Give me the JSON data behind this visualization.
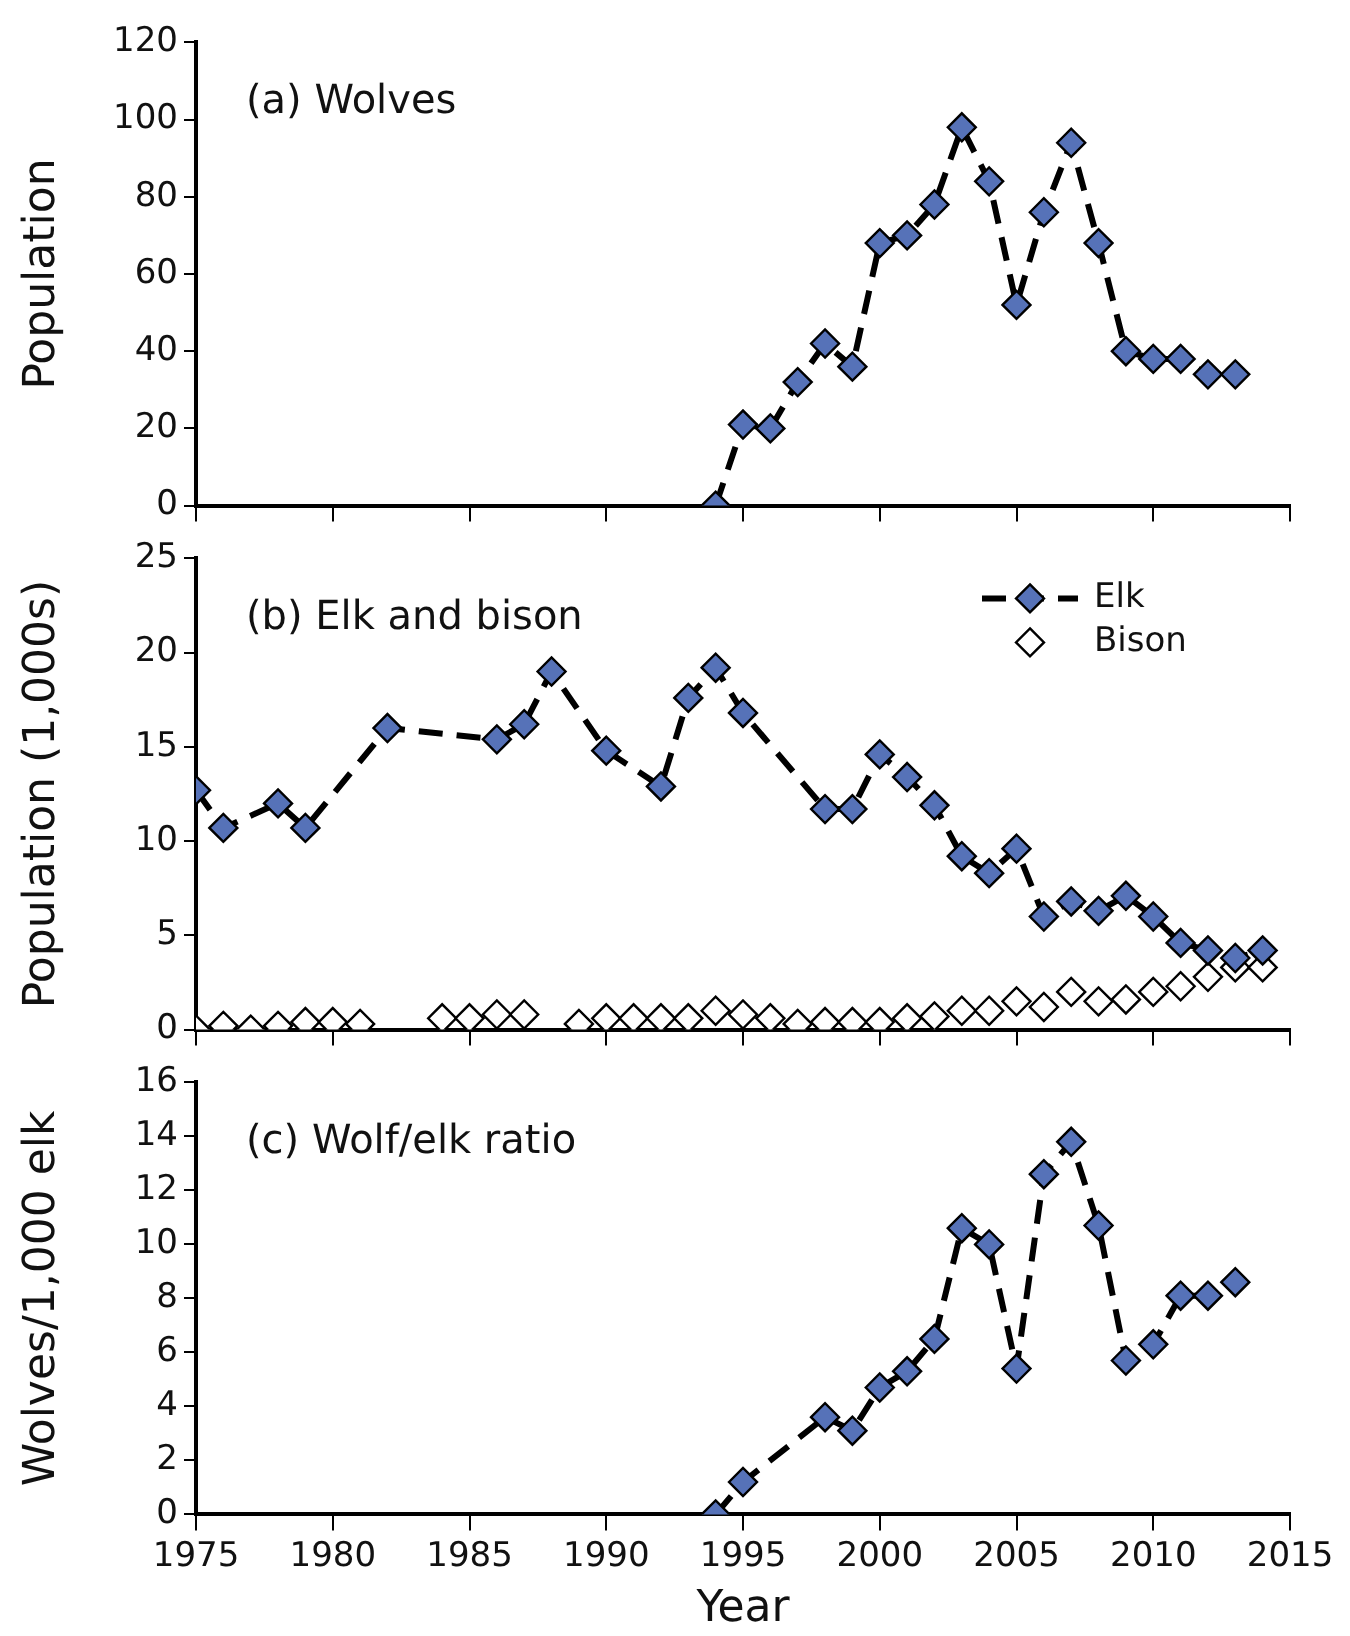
{
  "chart_data": [
    {
      "type": "line",
      "title": "(a) Wolves",
      "ylabel": "Population",
      "xlim": [
        1975,
        2015
      ],
      "xticks": [
        1975,
        1980,
        1985,
        1990,
        1995,
        2000,
        2005,
        2010,
        2015
      ],
      "ylim": [
        0,
        120
      ],
      "yticks": [
        0,
        20,
        40,
        60,
        80,
        100,
        120
      ],
      "tick_labels": "y",
      "grid": false,
      "legend": false,
      "marker": "diamond",
      "line_style": "dashed",
      "series": [
        {
          "color": "#5672b8",
          "x": [
            1994,
            1995,
            1996,
            1997,
            1998,
            1999,
            2000,
            2001,
            2002,
            2003,
            2004,
            2005,
            2006,
            2007,
            2008,
            2009,
            2010,
            2011,
            2012,
            2013
          ],
          "values": [
            0,
            21,
            20,
            32,
            42,
            36,
            68,
            70,
            78,
            98,
            84,
            52,
            76,
            94,
            68,
            40,
            38,
            38,
            34,
            34
          ]
        }
      ]
    },
    {
      "type": "line",
      "title": "(b) Elk and bison",
      "ylabel": "Population (1,000s)",
      "xlim": [
        1975,
        2015
      ],
      "xticks": [
        1975,
        1980,
        1985,
        1990,
        1995,
        2000,
        2005,
        2010,
        2015
      ],
      "ylim": [
        0,
        25
      ],
      "yticks": [
        0,
        5,
        10,
        15,
        20,
        25
      ],
      "tick_labels": "y",
      "grid": false,
      "legend": "top right",
      "marker": "diamond",
      "line_style": "dashed",
      "series": [
        {
          "name": "Elk",
          "color": "#5672b8",
          "x": [
            1975,
            1976,
            1978,
            1979,
            1982,
            1986,
            1987,
            1988,
            1990,
            1992,
            1993,
            1994,
            1995,
            1998,
            1999,
            2000,
            2001,
            2002,
            2003,
            2004,
            2005,
            2006,
            2007,
            2008,
            2009,
            2010,
            2011,
            2012,
            2013,
            2014
          ],
          "values": [
            12.7,
            10.7,
            12,
            10.7,
            16,
            15.4,
            16.2,
            19,
            14.8,
            12.9,
            17.6,
            19.2,
            16.8,
            11.7,
            11.7,
            14.6,
            13.4,
            11.9,
            9.2,
            8.3,
            9.6,
            6,
            6.8,
            6.3,
            7.1,
            6,
            4.6,
            4.2,
            3.8,
            4.2
          ]
        },
        {
          "name": "Bison",
          "type": "scatter",
          "color": "#ffffff",
          "x": [
            1975,
            1976,
            1977,
            1978,
            1979,
            1980,
            1981,
            1984,
            1985,
            1986,
            1987,
            1989,
            1990,
            1991,
            1992,
            1993,
            1994,
            1995,
            1996,
            1997,
            1998,
            1999,
            2000,
            2001,
            2002,
            2003,
            2004,
            2005,
            2006,
            2007,
            2008,
            2009,
            2010,
            2011,
            2012,
            2013,
            2014
          ],
          "values": [
            0,
            0.2,
            0,
            0.2,
            0.4,
            0.4,
            0.3,
            0.6,
            0.6,
            0.8,
            0.8,
            0.3,
            0.6,
            0.6,
            0.6,
            0.6,
            1,
            0.8,
            0.6,
            0.3,
            0.4,
            0.4,
            0.4,
            0.6,
            0.7,
            1,
            1,
            1.5,
            1.2,
            2,
            1.5,
            1.6,
            2,
            2.3,
            2.8,
            3.3,
            3.3
          ]
        }
      ]
    },
    {
      "type": "line",
      "title": "(c) Wolf/elk ratio",
      "xlabel": "Year",
      "ylabel": "Wolves/1,000 elk",
      "xlim": [
        1975,
        2015
      ],
      "xticks": [
        1975,
        1980,
        1985,
        1990,
        1995,
        2000,
        2005,
        2010,
        2015
      ],
      "ylim": [
        0,
        16
      ],
      "yticks": [
        0,
        2,
        4,
        6,
        8,
        10,
        12,
        14,
        16
      ],
      "grid": false,
      "legend": false,
      "marker": "diamond",
      "line_style": "dashed",
      "series": [
        {
          "color": "#5672b8",
          "x": [
            1994,
            1995,
            1998,
            1999,
            2000,
            2001,
            2002,
            2003,
            2004,
            2005,
            2006,
            2007,
            2008,
            2009,
            2010,
            2011,
            2012,
            2013
          ],
          "values": [
            0,
            1.2,
            3.6,
            3.1,
            4.7,
            5.3,
            6.5,
            10.6,
            10,
            5.4,
            12.6,
            13.8,
            10.7,
            5.7,
            6.3,
            8.1,
            8.1,
            8.6
          ]
        }
      ]
    }
  ]
}
